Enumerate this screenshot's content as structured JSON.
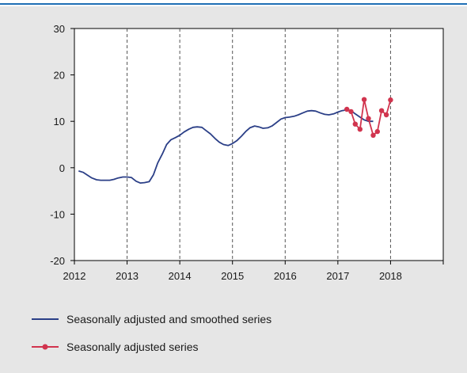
{
  "chart_data": {
    "type": "line",
    "title": "",
    "xlabel": "",
    "ylabel": "",
    "xlim": [
      2012,
      2019
    ],
    "ylim": [
      -20,
      30
    ],
    "x_ticks": [
      2012,
      2013,
      2014,
      2015,
      2016,
      2017,
      2018
    ],
    "x_tick_labels": [
      "2012",
      "2013",
      "2014",
      "2015",
      "2016",
      "2017",
      "2018"
    ],
    "y_ticks": [
      -20,
      -10,
      0,
      10,
      20,
      30
    ],
    "y_tick_labels": [
      "-20",
      "-10",
      "0",
      "10",
      "20",
      "30"
    ],
    "grid": "vertical dashed at year boundaries",
    "legend_position": "bottom",
    "series": [
      {
        "name": "Seasonally adjusted and smoothed series",
        "color": "#2b3f87",
        "marker": "none",
        "points": [
          [
            2012.08,
            -0.7
          ],
          [
            2012.17,
            -1.0
          ],
          [
            2012.25,
            -1.6
          ],
          [
            2012.33,
            -2.2
          ],
          [
            2012.42,
            -2.6
          ],
          [
            2012.5,
            -2.7
          ],
          [
            2012.58,
            -2.7
          ],
          [
            2012.67,
            -2.7
          ],
          [
            2012.75,
            -2.5
          ],
          [
            2012.83,
            -2.2
          ],
          [
            2012.92,
            -2.0
          ],
          [
            2013.0,
            -2.0
          ],
          [
            2013.08,
            -2.1
          ],
          [
            2013.17,
            -2.9
          ],
          [
            2013.25,
            -3.3
          ],
          [
            2013.33,
            -3.2
          ],
          [
            2013.42,
            -3.0
          ],
          [
            2013.5,
            -1.5
          ],
          [
            2013.58,
            1.0
          ],
          [
            2013.67,
            3.0
          ],
          [
            2013.75,
            5.0
          ],
          [
            2013.83,
            6.0
          ],
          [
            2013.92,
            6.5
          ],
          [
            2014.0,
            7.0
          ],
          [
            2014.08,
            7.7
          ],
          [
            2014.17,
            8.3
          ],
          [
            2014.25,
            8.7
          ],
          [
            2014.33,
            8.8
          ],
          [
            2014.42,
            8.7
          ],
          [
            2014.5,
            8.0
          ],
          [
            2014.58,
            7.3
          ],
          [
            2014.67,
            6.3
          ],
          [
            2014.75,
            5.5
          ],
          [
            2014.83,
            5.0
          ],
          [
            2014.92,
            4.8
          ],
          [
            2015.0,
            5.2
          ],
          [
            2015.08,
            5.8
          ],
          [
            2015.17,
            6.8
          ],
          [
            2015.25,
            7.8
          ],
          [
            2015.33,
            8.6
          ],
          [
            2015.42,
            9.0
          ],
          [
            2015.5,
            8.8
          ],
          [
            2015.58,
            8.5
          ],
          [
            2015.67,
            8.6
          ],
          [
            2015.75,
            9.0
          ],
          [
            2015.83,
            9.7
          ],
          [
            2015.92,
            10.5
          ],
          [
            2016.0,
            10.8
          ],
          [
            2016.08,
            10.9
          ],
          [
            2016.17,
            11.1
          ],
          [
            2016.25,
            11.4
          ],
          [
            2016.33,
            11.8
          ],
          [
            2016.42,
            12.2
          ],
          [
            2016.5,
            12.3
          ],
          [
            2016.58,
            12.2
          ],
          [
            2016.67,
            11.8
          ],
          [
            2016.75,
            11.5
          ],
          [
            2016.83,
            11.4
          ],
          [
            2016.92,
            11.6
          ],
          [
            2017.0,
            12.0
          ],
          [
            2017.08,
            12.3
          ],
          [
            2017.17,
            12.5
          ],
          [
            2017.25,
            12.3
          ],
          [
            2017.33,
            11.6
          ],
          [
            2017.42,
            10.9
          ],
          [
            2017.5,
            10.3
          ],
          [
            2017.58,
            10.0
          ],
          [
            2017.67,
            10.0
          ]
        ]
      },
      {
        "name": "Seasonally adjusted series",
        "color": "#d1344e",
        "marker": "circle",
        "points": [
          [
            2017.17,
            12.6
          ],
          [
            2017.25,
            12.1
          ],
          [
            2017.33,
            9.4
          ],
          [
            2017.42,
            8.3
          ],
          [
            2017.5,
            14.7
          ],
          [
            2017.58,
            10.6
          ],
          [
            2017.67,
            7.0
          ],
          [
            2017.75,
            7.8
          ],
          [
            2017.83,
            12.3
          ],
          [
            2017.92,
            11.4
          ],
          [
            2018.0,
            14.6
          ]
        ]
      }
    ]
  }
}
